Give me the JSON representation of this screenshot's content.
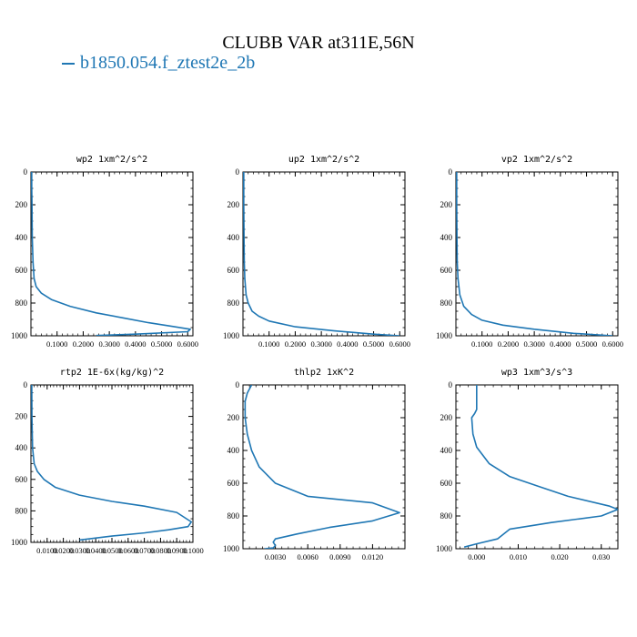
{
  "title": "CLUBB VAR at311E,56N",
  "legend": [
    {
      "name": "b1850.054.f_ztest2e_2b",
      "color": "#1f77b4"
    }
  ],
  "line_color": "#1f77b4",
  "chart_data": [
    {
      "type": "line",
      "title": "wp2  1xm^2/s^2",
      "xlim": [
        0,
        0.62
      ],
      "ylim": [
        1000,
        0
      ],
      "yticks": [
        "0",
        "200",
        "400",
        "600",
        "800",
        "1000"
      ],
      "xticks": [
        {
          "v": 0.1,
          "label": "0.1000"
        },
        {
          "v": 0.2,
          "label": "0.2000"
        },
        {
          "v": 0.3,
          "label": "0.3000"
        },
        {
          "v": 0.4,
          "label": "0.4000"
        },
        {
          "v": 0.5,
          "label": "0.5000"
        },
        {
          "v": 0.6,
          "label": "0.6000"
        }
      ],
      "x": [
        0.003,
        0.003,
        0.004,
        0.005,
        0.008,
        0.012,
        0.02,
        0.04,
        0.08,
        0.15,
        0.25,
        0.35,
        0.45,
        0.55,
        0.61,
        0.6,
        0.4,
        0.25
      ],
      "y": [
        0,
        100,
        200,
        400,
        550,
        650,
        700,
        740,
        780,
        820,
        860,
        890,
        920,
        945,
        960,
        975,
        990,
        998
      ]
    },
    {
      "type": "line",
      "title": "up2  1xm^2/s^2",
      "xlim": [
        0,
        0.62
      ],
      "ylim": [
        1000,
        0
      ],
      "yticks": [
        "0",
        "200",
        "400",
        "600",
        "800",
        "1000"
      ],
      "xticks": [
        {
          "v": 0.1,
          "label": "0.1000"
        },
        {
          "v": 0.2,
          "label": "0.2000"
        },
        {
          "v": 0.3,
          "label": "0.3000"
        },
        {
          "v": 0.4,
          "label": "0.4000"
        },
        {
          "v": 0.5,
          "label": "0.5000"
        },
        {
          "v": 0.6,
          "label": "0.6000"
        }
      ],
      "x": [
        0.003,
        0.003,
        0.004,
        0.005,
        0.007,
        0.012,
        0.02,
        0.035,
        0.06,
        0.1,
        0.2,
        0.35,
        0.5,
        0.6
      ],
      "y": [
        0,
        200,
        400,
        550,
        650,
        750,
        800,
        850,
        880,
        910,
        945,
        970,
        990,
        1000
      ]
    },
    {
      "type": "line",
      "title": "vp2  1xm^2/s^2",
      "xlim": [
        0,
        0.62
      ],
      "ylim": [
        1000,
        0
      ],
      "yticks": [
        "0",
        "200",
        "400",
        "600",
        "800",
        "1000"
      ],
      "xticks": [
        {
          "v": 0.1,
          "label": "0.1000"
        },
        {
          "v": 0.2,
          "label": "0.2000"
        },
        {
          "v": 0.3,
          "label": "0.3000"
        },
        {
          "v": 0.4,
          "label": "0.4000"
        },
        {
          "v": 0.5,
          "label": "0.5000"
        },
        {
          "v": 0.6,
          "label": "0.6000"
        }
      ],
      "x": [
        0.003,
        0.003,
        0.004,
        0.005,
        0.008,
        0.015,
        0.03,
        0.06,
        0.1,
        0.18,
        0.3,
        0.45,
        0.6
      ],
      "y": [
        0,
        200,
        400,
        550,
        650,
        750,
        820,
        870,
        905,
        935,
        960,
        985,
        1000
      ]
    },
    {
      "type": "line",
      "title": "rtp2  1E-6x(kg/kg)^2",
      "xlim": [
        0,
        0.1
      ],
      "ylim": [
        1000,
        0
      ],
      "yticks": [
        "0",
        "200",
        "400",
        "600",
        "800",
        "1000"
      ],
      "xticks": [
        {
          "v": 0.01,
          "label": "0.0100"
        },
        {
          "v": 0.02,
          "label": "0.0200"
        },
        {
          "v": 0.03,
          "label": "0.0300"
        },
        {
          "v": 0.04,
          "label": "0.0400"
        },
        {
          "v": 0.05,
          "label": "0.0500"
        },
        {
          "v": 0.06,
          "label": "0.0600"
        },
        {
          "v": 0.07,
          "label": "0.0700"
        },
        {
          "v": 0.08,
          "label": "0.0800"
        },
        {
          "v": 0.09,
          "label": "0.0900"
        },
        {
          "v": 0.1,
          "label": "0.1000"
        }
      ],
      "x": [
        0.0005,
        0.0006,
        0.001,
        0.002,
        0.004,
        0.008,
        0.015,
        0.03,
        0.05,
        0.07,
        0.09,
        0.099,
        0.097,
        0.085,
        0.07,
        0.05,
        0.03
      ],
      "y": [
        0,
        200,
        400,
        500,
        550,
        600,
        650,
        700,
        740,
        770,
        810,
        870,
        900,
        920,
        940,
        960,
        985
      ]
    },
    {
      "type": "line",
      "title": "thlp2  1xK^2",
      "xlim": [
        0,
        0.015
      ],
      "ylim": [
        1000,
        0
      ],
      "yticks": [
        "0",
        "200",
        "400",
        "600",
        "800",
        "1000"
      ],
      "xticks": [
        {
          "v": 0.003,
          "label": "0.0030"
        },
        {
          "v": 0.006,
          "label": "0.0060"
        },
        {
          "v": 0.009,
          "label": "0.0090"
        },
        {
          "v": 0.012,
          "label": "0.0120"
        }
      ],
      "x": [
        0.0008,
        0.0004,
        0.0002,
        0.0002,
        0.0004,
        0.0008,
        0.0015,
        0.003,
        0.006,
        0.012,
        0.0145,
        0.012,
        0.008,
        0.005,
        0.003,
        0.0028,
        0.003,
        0.0028,
        0.002
      ],
      "y": [
        0,
        50,
        100,
        200,
        300,
        400,
        500,
        600,
        680,
        720,
        780,
        830,
        870,
        910,
        940,
        960,
        980,
        995,
        1000
      ]
    },
    {
      "type": "line",
      "title": "wp3  1xm^3/s^3",
      "xlim": [
        -0.005,
        0.034
      ],
      "ylim": [
        1000,
        0
      ],
      "yticks": [
        "0",
        "200",
        "400",
        "600",
        "800",
        "1000"
      ],
      "xticks": [
        {
          "v": 0.0,
          "label": "0.000"
        },
        {
          "v": 0.01,
          "label": "0.010"
        },
        {
          "v": 0.02,
          "label": "0.020"
        },
        {
          "v": 0.03,
          "label": "0.030"
        }
      ],
      "x": [
        0.0,
        0.0,
        -0.0005,
        -0.0012,
        -0.0009,
        0.0,
        0.003,
        0.008,
        0.015,
        0.022,
        0.032,
        0.034,
        0.03,
        0.018,
        0.008,
        0.005,
        0.0,
        -0.003
      ],
      "y": [
        0,
        150,
        175,
        200,
        300,
        380,
        480,
        560,
        620,
        680,
        740,
        760,
        800,
        840,
        880,
        940,
        970,
        990
      ]
    }
  ]
}
